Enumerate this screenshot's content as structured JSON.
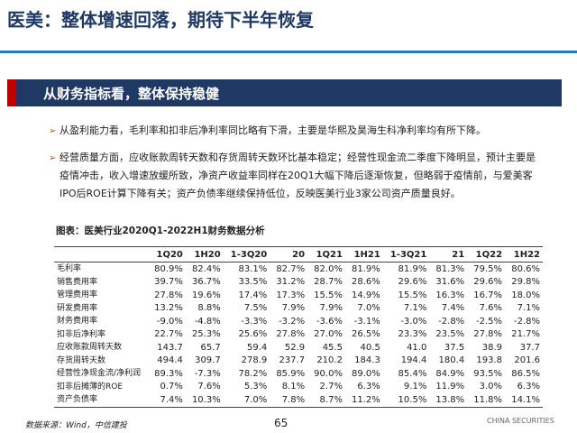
{
  "header": {
    "title": "医美：整体增速回落，期待下半年恢复"
  },
  "banner": "从财务指标看，整体保持稳健",
  "bullets": [
    "从盈利能力看，毛利率和扣非后净利率同比略有下滑，主要是华熙及昊海生科净利率均有所下降。",
    "经营质量方面，应收账款周转天数和存货周转天数环比基本稳定；经营性现金流二季度下降明显，预计主要是疫情冲击，收入增速放缓所致，净资产收益率同样在20Q1大幅下降后逐渐恢复，但略弱于疫情前，与爱美客IPO后ROE计算下降有关；资产负债率继续保持低位，反映医美行业3家公司资产质量良好。"
  ],
  "table": {
    "caption": "图表：医美行业2020Q1-2022H1财务数据分析",
    "columns": [
      "1Q20",
      "1H20",
      "1-3Q20",
      "20",
      "1Q21",
      "1H21",
      "1-3Q21",
      "21",
      "1Q22",
      "1H22"
    ],
    "rows": [
      [
        "毛利率",
        "80.9%",
        "82.4%",
        "83.1%",
        "82.7%",
        "82.0%",
        "81.9%",
        "81.9%",
        "81.3%",
        "79.5%",
        "80.6%"
      ],
      [
        "销售费用率",
        "39.7%",
        "36.7%",
        "33.5%",
        "31.2%",
        "28.7%",
        "28.6%",
        "29.6%",
        "31.6%",
        "29.6%",
        "29.8%"
      ],
      [
        "管理费用率",
        "27.8%",
        "19.6%",
        "17.4%",
        "17.3%",
        "15.5%",
        "14.9%",
        "15.5%",
        "16.3%",
        "16.7%",
        "18.0%"
      ],
      [
        "研发费用率",
        "13.2%",
        "8.8%",
        "7.5%",
        "7.9%",
        "7.9%",
        "7.0%",
        "7.1%",
        "7.4%",
        "7.6%",
        "7.1%"
      ],
      [
        "财务费用率",
        "-9.0%",
        "-4.8%",
        "-3.3%",
        "-3.2%",
        "-3.6%",
        "-3.1%",
        "-3.0%",
        "-2.8%",
        "-2.5%",
        "-2.8%"
      ],
      [
        "扣非后净利率",
        "22.7%",
        "25.3%",
        "25.6%",
        "27.8%",
        "27.0%",
        "26.5%",
        "23.3%",
        "23.5%",
        "27.8%",
        "21.7%"
      ],
      [
        "应收账款周转天数",
        "143.7",
        "65.7",
        "59.4",
        "52.9",
        "45.5",
        "40.5",
        "41.0",
        "37.5",
        "38.9",
        "37.7"
      ],
      [
        "存货周转天数",
        "494.4",
        "309.7",
        "278.9",
        "237.7",
        "210.2",
        "184.3",
        "194.4",
        "180.4",
        "193.8",
        "201.6"
      ],
      [
        "经营性净现金流/净利润",
        "89.3%",
        "-7.3%",
        "78.2%",
        "85.9%",
        "90.0%",
        "89.0%",
        "85.4%",
        "84.9%",
        "93.5%",
        "86.5%"
      ],
      [
        "扣非后摊薄的ROE",
        "0.7%",
        "7.6%",
        "5.3%",
        "8.1%",
        "2.7%",
        "6.3%",
        "9.1%",
        "11.9%",
        "3.0%",
        "6.3%"
      ],
      [
        "资产负债率",
        "7.4%",
        "10.3%",
        "7.0%",
        "7.8%",
        "8.7%",
        "11.2%",
        "10.5%",
        "13.8%",
        "11.8%",
        "14.1%"
      ]
    ]
  },
  "footer": {
    "source": "数据来源：Wind，中信建投",
    "page": "65",
    "brand": "CHINA SECURITIES"
  }
}
